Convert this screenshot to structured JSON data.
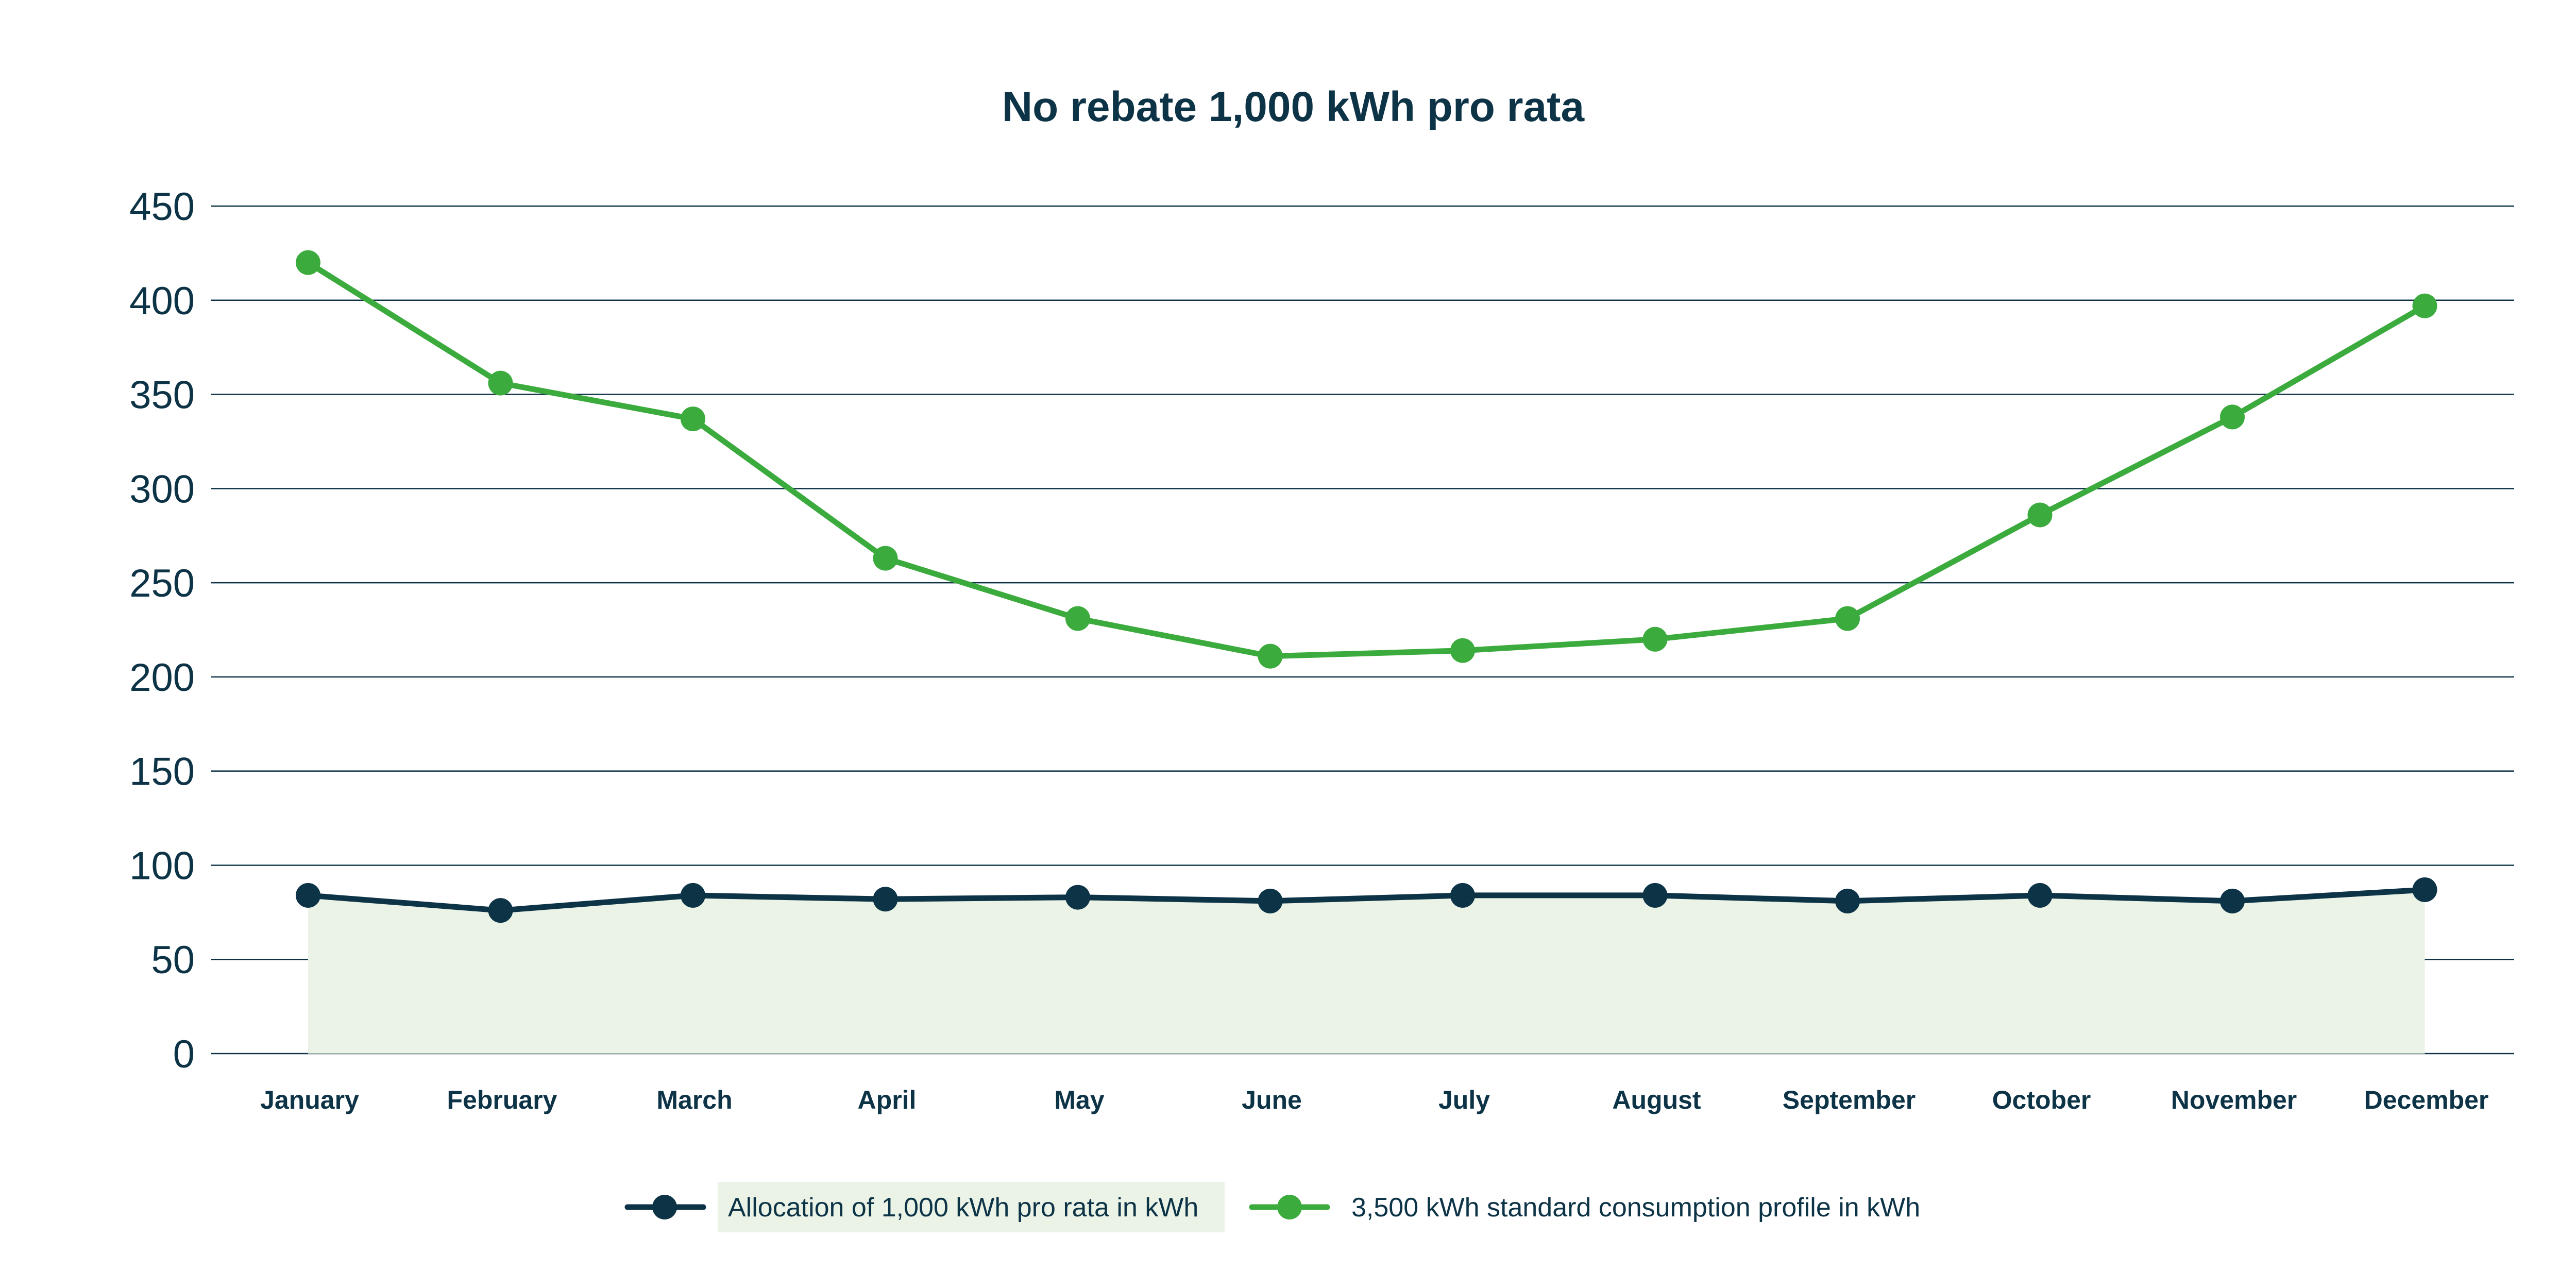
{
  "chart_data": {
    "type": "line",
    "title": "No rebate 1,000 kWh pro rata",
    "xlabel": "",
    "ylabel": "",
    "ylim": [
      0,
      450
    ],
    "yticks": [
      0,
      50,
      100,
      150,
      200,
      250,
      300,
      350,
      400,
      450
    ],
    "grid": "horizontal",
    "legend_position": "bottom-center",
    "categories": [
      "January",
      "February",
      "March",
      "April",
      "May",
      "June",
      "July",
      "August",
      "September",
      "October",
      "November",
      "December"
    ],
    "series": [
      {
        "name": "Allocation of 1,000 kWh pro rata in kWh",
        "color": "#0d3347",
        "fill": "#eaf3e6",
        "area": true,
        "values": [
          84,
          76,
          84,
          82,
          83,
          81,
          84,
          84,
          81,
          84,
          81,
          87
        ]
      },
      {
        "name": "3,500 kWh standard consumption profile in kWh",
        "color": "#3cab3d",
        "area": false,
        "values": [
          420,
          356,
          337,
          263,
          231,
          211,
          214,
          220,
          231,
          286,
          338,
          397
        ]
      }
    ]
  },
  "colors": {
    "text": "#0d3347",
    "grid": "#0d3347",
    "legend_highlight": "#eaf3e6"
  }
}
